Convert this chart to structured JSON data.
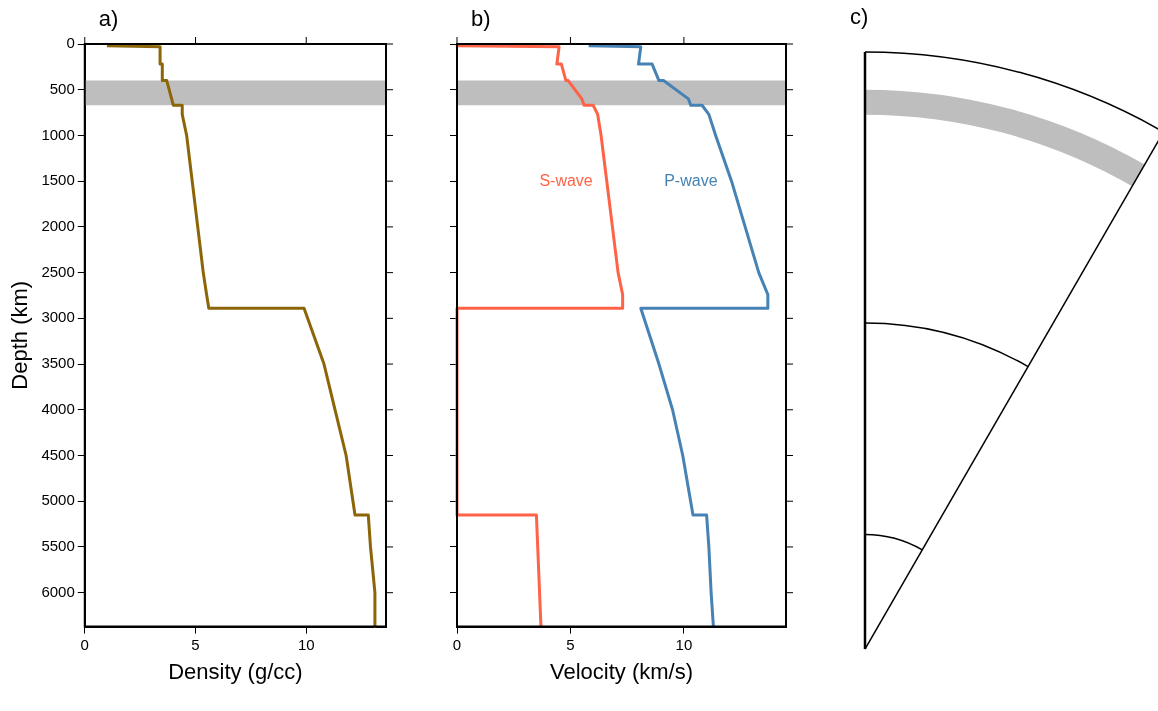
{
  "chart_data": [
    {
      "type": "line",
      "title": "a)",
      "xlabel": "Density (g/cc)",
      "ylabel": "Depth (km)",
      "xlim": [
        0,
        13.6
      ],
      "xticks": [
        0,
        5,
        10
      ],
      "ylim": [
        6371,
        0
      ],
      "yticks": [
        0,
        500,
        1000,
        1500,
        2000,
        2500,
        3000,
        3500,
        4000,
        4500,
        5000,
        5500,
        6000
      ],
      "grid": false,
      "legend": false,
      "marker": "none",
      "line_style": "solid",
      "bands": [
        {
          "axis": "y",
          "from": 400,
          "to": 670,
          "color": "#bebebe"
        }
      ],
      "series": [
        {
          "color": "#8b6508",
          "x": [
            1.0,
            3.4,
            3.4,
            3.5,
            3.5,
            3.7,
            4.0,
            4.4,
            4.4,
            4.6,
            4.85,
            5.1,
            5.35,
            5.5,
            5.6,
            9.9,
            10.8,
            11.3,
            11.8,
            12.2,
            12.8,
            12.9,
            13.1,
            13.1
          ],
          "values": [
            20,
            30,
            220,
            220,
            400,
            400,
            670,
            670,
            770,
            1000,
            1500,
            2000,
            2500,
            2740,
            2890,
            2890,
            3500,
            4000,
            4500,
            5150,
            5150,
            5500,
            6000,
            6370
          ]
        }
      ]
    },
    {
      "type": "line",
      "title": "b)",
      "xlabel": "Velocity (km/s)",
      "xlim": [
        0,
        14.5
      ],
      "xticks": [
        0,
        5,
        10
      ],
      "ylim": [
        6371,
        0
      ],
      "yticks": [
        0,
        500,
        1000,
        1500,
        2000,
        2500,
        3000,
        3500,
        4000,
        4500,
        5000,
        5500,
        6000
      ],
      "tick_labels": "x",
      "grid": false,
      "legend": false,
      "marker": "none",
      "line_style": "solid",
      "bands": [
        {
          "axis": "y",
          "from": 400,
          "to": 670,
          "color": "#bebebe"
        }
      ],
      "series": [
        {
          "name": "S-wave",
          "color": "#ff6347",
          "x": [
            0,
            4.5,
            4.4,
            4.6,
            4.8,
            4.9,
            5.5,
            5.6,
            6.0,
            6.2,
            6.35,
            6.6,
            6.85,
            7.1,
            7.3,
            7.3,
            0,
            0,
            3.5,
            3.7
          ],
          "values": [
            20,
            30,
            220,
            220,
            400,
            400,
            600,
            670,
            670,
            770,
            1000,
            1500,
            2000,
            2500,
            2740,
            2890,
            2890,
            5150,
            5150,
            6370
          ]
        },
        {
          "name": "P-wave",
          "color": "#4682b4",
          "x": [
            5.8,
            8.1,
            8.0,
            8.6,
            8.9,
            9.1,
            10.2,
            10.3,
            10.8,
            11.1,
            11.4,
            12.1,
            12.7,
            13.3,
            13.7,
            13.7,
            8.1,
            8.9,
            9.5,
            9.95,
            10.4,
            11.0,
            11.1,
            11.2,
            11.3
          ],
          "values": [
            20,
            30,
            220,
            220,
            400,
            400,
            600,
            670,
            670,
            770,
            1000,
            1500,
            2000,
            2500,
            2740,
            2890,
            2890,
            3500,
            4000,
            4500,
            5150,
            5150,
            5500,
            6000,
            6370
          ]
        }
      ]
    },
    {
      "type": "other",
      "title": "c)"
    }
  ]
}
